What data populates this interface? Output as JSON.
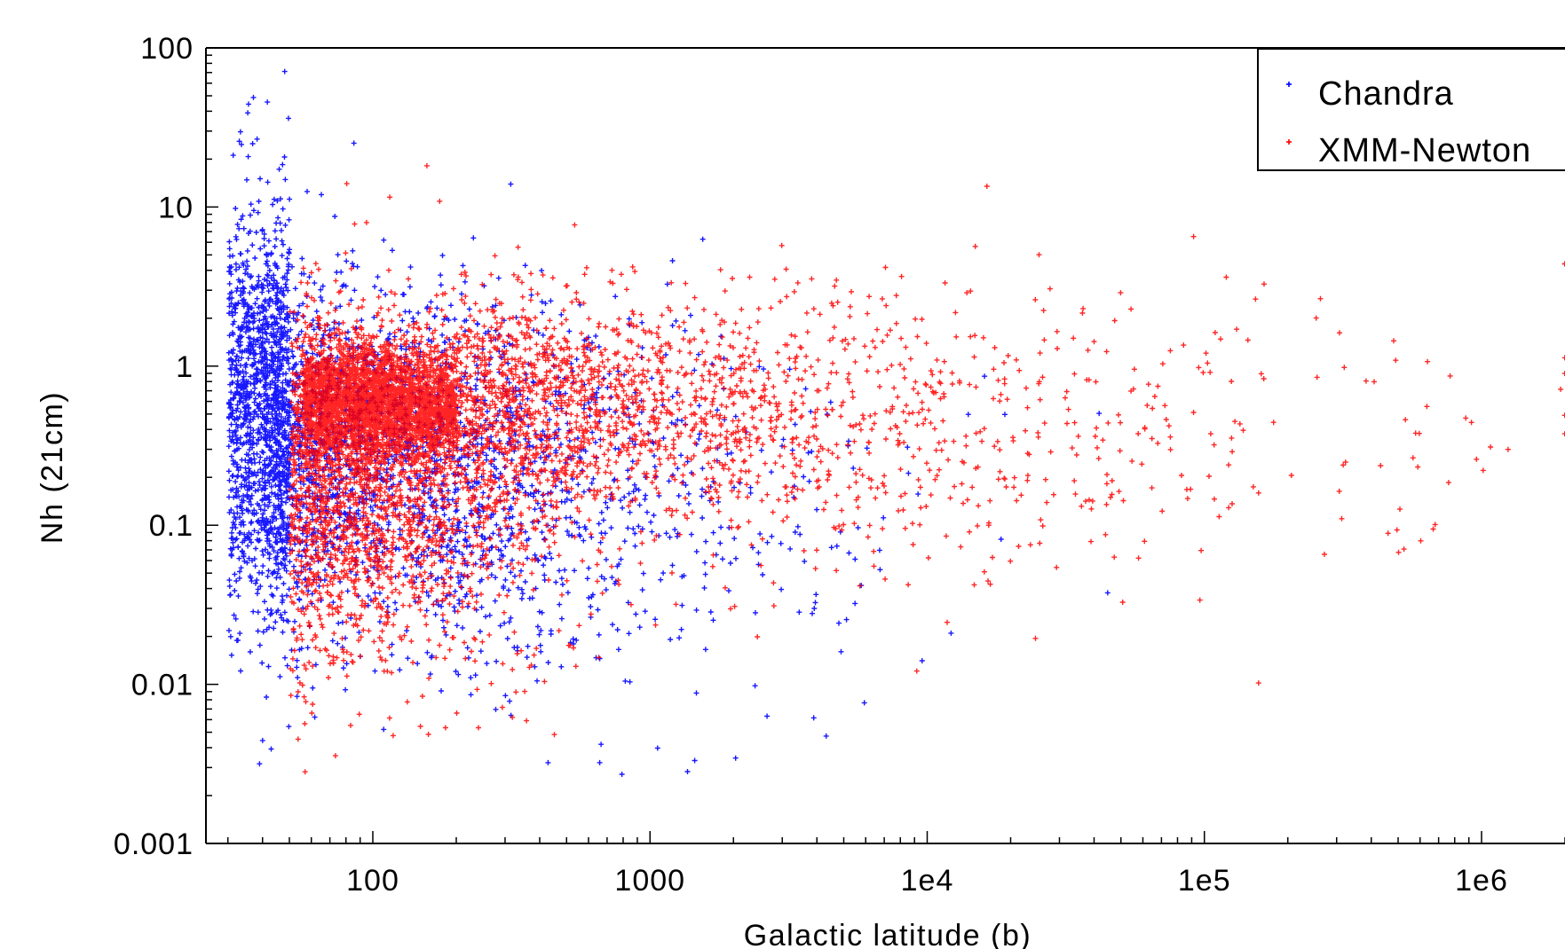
{
  "chart_data": {
    "type": "scatter",
    "xlabel": "Galactic latitude (b)",
    "ylabel": "Nh (21cm)",
    "x_scale": "log",
    "y_scale": "log",
    "xlim": [
      25,
      2000000
    ],
    "ylim": [
      0.001,
      100
    ],
    "x_ticks": [
      {
        "value": 100,
        "label": "100"
      },
      {
        "value": 1000,
        "label": "1000"
      },
      {
        "value": 10000,
        "label": "1e4"
      },
      {
        "value": 100000,
        "label": "1e5"
      },
      {
        "value": 1000000,
        "label": "1e6"
      }
    ],
    "y_ticks": [
      {
        "value": 100,
        "label": "100"
      },
      {
        "value": 10,
        "label": "10"
      },
      {
        "value": 1,
        "label": "1"
      },
      {
        "value": 0.1,
        "label": "0.1"
      },
      {
        "value": 0.01,
        "label": "0.01"
      },
      {
        "value": 0.001,
        "label": "0.001"
      }
    ],
    "legend_position": "top-right",
    "grid": false,
    "series": [
      {
        "name": "Chandra",
        "color": "#0000ff",
        "marker": "plus",
        "point_count": 3500
      },
      {
        "name": "XMM-Newton",
        "color": "#ff0000",
        "marker": "plus",
        "point_count": 7000
      }
    ]
  }
}
